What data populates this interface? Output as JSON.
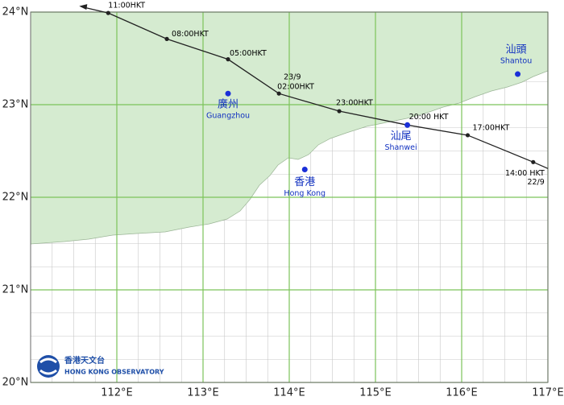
{
  "map": {
    "xlim": [
      111,
      117
    ],
    "ylim": [
      20,
      24
    ],
    "xticks": [
      {
        "value": 112,
        "label": "112°E"
      },
      {
        "value": 113,
        "label": "113°E"
      },
      {
        "value": 114,
        "label": "114°E"
      },
      {
        "value": 115,
        "label": "115°E"
      },
      {
        "value": 116,
        "label": "116°E"
      },
      {
        "value": 117,
        "label": "117°E"
      }
    ],
    "yticks": [
      {
        "value": 20,
        "label": "20°N"
      },
      {
        "value": 21,
        "label": "21°N"
      },
      {
        "value": 22,
        "label": "22°N"
      },
      {
        "value": 23,
        "label": "23°N"
      },
      {
        "value": 24,
        "label": "24°N"
      }
    ],
    "track": [
      {
        "time": "11:00HKT",
        "lon": 111.9,
        "lat": 23.99
      },
      {
        "time": "08:00HKT",
        "lon": 112.58,
        "lat": 23.71
      },
      {
        "time": "05:00HKT",
        "lon": 113.29,
        "lat": 23.49
      },
      {
        "time": "02:00HKT",
        "date": "23/9",
        "lon": 113.88,
        "lat": 23.12
      },
      {
        "time": "23:00HKT",
        "lon": 114.58,
        "lat": 22.93
      },
      {
        "time": "20:00 HKT",
        "lon": 115.37,
        "lat": 22.78
      },
      {
        "time": "17:00HKT",
        "lon": 116.07,
        "lat": 22.67
      },
      {
        "time": "14:00 HKT",
        "date": "22/9",
        "lon": 116.83,
        "lat": 22.38
      }
    ],
    "cities": [
      {
        "name_zh": "廣州",
        "name_en": "Guangzhou",
        "lon": 113.29,
        "lat": 23.12
      },
      {
        "name_zh": "香港",
        "name_en": "Hong Kong",
        "lon": 114.18,
        "lat": 22.3
      },
      {
        "name_zh": "汕尾",
        "name_en": "Shanwei",
        "lon": 115.37,
        "lat": 22.78
      },
      {
        "name_zh": "汕頭",
        "name_en": "Shantou",
        "lon": 116.65,
        "lat": 23.33
      }
    ],
    "logo": {
      "name_zh": "香港天文台",
      "name_en": "HONG KONG OBSERVATORY"
    }
  }
}
